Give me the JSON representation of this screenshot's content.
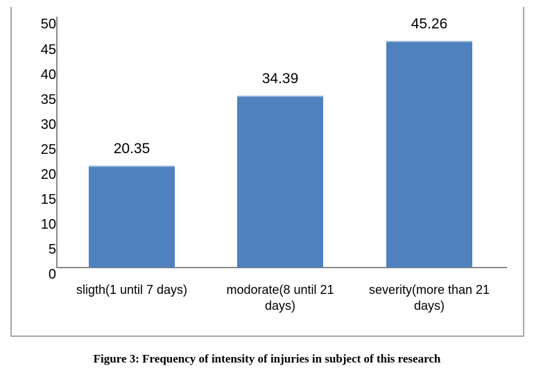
{
  "figure": {
    "caption": "Figure 3: Frequency of intensity of injuries in subject of this research"
  },
  "chart_data": {
    "type": "bar",
    "categories": [
      "sligth(1 until 7 days)",
      "modorate(8 until 21 days)",
      "severity(more than 21 days)"
    ],
    "values": [
      20.35,
      34.39,
      45.26
    ],
    "data_labels": [
      "20.35",
      "34.39",
      "45.26"
    ],
    "title": "",
    "xlabel": "",
    "ylabel": "",
    "ylim": [
      0,
      50
    ],
    "ytick_interval": 5,
    "yticks": [
      0,
      5,
      10,
      15,
      20,
      25,
      30,
      35,
      40,
      45,
      50
    ],
    "grid": false,
    "legend": false,
    "bar_color": "#4E81BD",
    "bar_top_highlight": "#95B3D7",
    "axis_color": "#898989",
    "frame_color": "#A6A6A6",
    "text_color": "#000000"
  }
}
